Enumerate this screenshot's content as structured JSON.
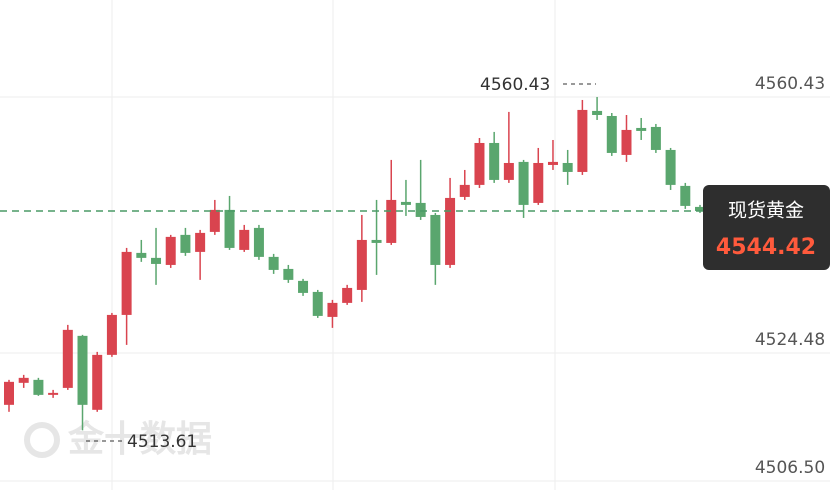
{
  "chart_data": {
    "type": "candlestick",
    "up_color": "#d9444f",
    "down_color": "#5aa66e",
    "open": [
      4517.19,
      4520.28,
      4520.7,
      4518.59,
      4519.57,
      4526.88,
      4516.49,
      4524.21,
      4529.82,
      4538.53,
      4537.83,
      4536.84,
      4541.06,
      4538.67,
      4541.48,
      4544.57,
      4538.95,
      4542.04,
      4537.97,
      4536.28,
      4534.6,
      4533.05,
      4529.54,
      4531.51,
      4533.33,
      4540.35,
      4539.93,
      4545.69,
      4545.55,
      4543.86,
      4536.84,
      4546.39,
      4548.08,
      4553.97,
      4548.78,
      4551.31,
      4545.55,
      4550.88,
      4551.16,
      4549.9,
      4558.47,
      4557.76,
      4552.29,
      4556.08,
      4556.22,
      4552.99,
      4547.94,
      4544.99
    ],
    "high": [
      4520.7,
      4521.4,
      4520.98,
      4519.29,
      4528.42,
      4527.02,
      4524.63,
      4530.1,
      4539.23,
      4540.35,
      4542.04,
      4541.06,
      4542.04,
      4541.76,
      4545.97,
      4546.53,
      4542.46,
      4542.46,
      4538.39,
      4536.84,
      4534.88,
      4533.33,
      4531.93,
      4534.04,
      4543.86,
      4545.97,
      4551.59,
      4548.78,
      4551.59,
      4544.14,
      4549.06,
      4550.18,
      4554.67,
      4555.52,
      4558.33,
      4551.59,
      4553.27,
      4554.39,
      4552.99,
      4560.01,
      4560.43,
      4558.18,
      4557.9,
      4557.48,
      4556.64,
      4553.27,
      4548.36,
      4545.27
    ],
    "low": [
      4516.21,
      4519.57,
      4518.45,
      4518.17,
      4519.29,
      4513.61,
      4516.21,
      4523.93,
      4525.61,
      4537.27,
      4534.04,
      4536.42,
      4538.11,
      4534.74,
      4541.06,
      4538.95,
      4538.67,
      4537.55,
      4535.58,
      4534.32,
      4532.49,
      4529.4,
      4528.0,
      4531.23,
      4531.65,
      4535.44,
      4539.65,
      4543.72,
      4543.16,
      4534.04,
      4536.42,
      4545.97,
      4547.65,
      4548.36,
      4548.36,
      4543.44,
      4545.27,
      4550.18,
      4548.08,
      4549.48,
      4557.2,
      4552.15,
      4551.31,
      4554.39,
      4552.57,
      4547.37,
      4544.71,
      4544.14
    ],
    "close": [
      4520.42,
      4520.98,
      4518.59,
      4518.87,
      4527.72,
      4517.19,
      4524.21,
      4529.82,
      4538.67,
      4537.83,
      4536.98,
      4540.78,
      4538.53,
      4541.34,
      4544.57,
      4539.23,
      4541.76,
      4537.97,
      4536.14,
      4534.74,
      4532.91,
      4529.68,
      4531.51,
      4533.61,
      4540.35,
      4539.93,
      4545.97,
      4545.27,
      4543.58,
      4536.84,
      4546.25,
      4548.08,
      4553.97,
      4548.78,
      4551.16,
      4545.27,
      4551.16,
      4551.31,
      4549.9,
      4558.61,
      4557.9,
      4552.57,
      4555.8,
      4555.66,
      4552.99,
      4548.08,
      4545.13,
      4544.42
    ],
    "ylim": [
      4505.23,
      4574.05
    ],
    "yticks": [
      4560.43,
      4524.48,
      {
        "value": 4506.5,
        "label": "4506.50"
      }
    ],
    "grid": true,
    "high_label": 4560.43,
    "low_label": 4513.61,
    "instrument": "现货黄金",
    "last_price": 4544.42,
    "watermark": "金十数据"
  }
}
